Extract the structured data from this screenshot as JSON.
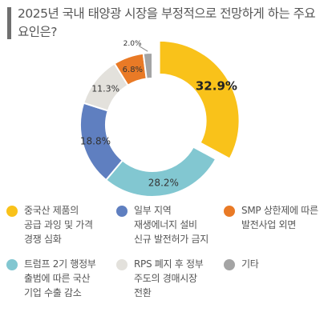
{
  "title": "2025년 국내 태양광 시장을 부정적으로 전망하게 하는 주요 요인은?",
  "chart_data": {
    "type": "pie",
    "donut": true,
    "title": "2025년 국내 태양광 시장을 부정적으로 전망하게 하는 주요 요인은?",
    "slices": [
      {
        "label": "중국산 제품의 공급 과잉 및 가격 경쟁 심화",
        "value": 32.9,
        "value_label": "32.9%",
        "color": "#f9c21a",
        "exploded": true
      },
      {
        "label": "트럼프 2기 행정부 출범에 따른 국산 기업 수출 감소",
        "value": 28.2,
        "value_label": "28.2%",
        "color": "#82c7d1",
        "exploded": false
      },
      {
        "label": "일부 지역 재생에너지 설비 신규 발전허가 금지",
        "value": 18.8,
        "value_label": "18.8%",
        "color": "#5f7fc0",
        "exploded": false
      },
      {
        "label": "RPS 폐지 후 정부 주도의 경매시장 전환",
        "value": 11.3,
        "value_label": "11.3%",
        "color": "#e3e1dc",
        "exploded": false
      },
      {
        "label": "SMP 상한제에 따른 발전사업 외면",
        "value": 6.8,
        "value_label": "6.8%",
        "color": "#e97a26",
        "exploded": false
      },
      {
        "label": "기타",
        "value": 2.0,
        "value_label": "2.0%",
        "color": "#a4a4a4",
        "exploded": false
      }
    ]
  },
  "legend": [
    {
      "text": "중국산 제품의\n공급 과잉 및 가격\n경쟁 심화",
      "color": "#f9c21a"
    },
    {
      "text": "일부 지역\n재생에너지 설비\n신규 발전허가 금지",
      "color": "#5f7fc0"
    },
    {
      "text": "SMP 상한제에 따른\n발전사업 외면",
      "color": "#e97a26"
    },
    {
      "text": "트럼프 2기 행정부\n출범에 따른 국산\n기업 수출 감소",
      "color": "#82c7d1"
    },
    {
      "text": "RPS 폐지 후 정부\n주도의 경매시장\n전환",
      "color": "#e3e1dc"
    },
    {
      "text": "기타",
      "color": "#a4a4a4"
    }
  ]
}
